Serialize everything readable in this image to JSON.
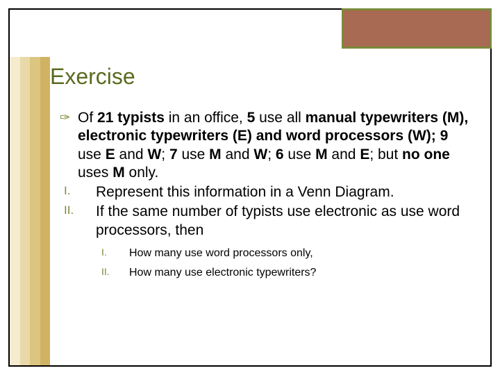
{
  "colors": {
    "frame_border": "#000000",
    "corner_fill": "#a86a52",
    "corner_border": "#7a8a3a",
    "title_color": "#5a6b1f",
    "accent": "#7a8a3a",
    "text": "#000000",
    "stripe1": "#f5ebcf",
    "stripe2": "#e9d9a9",
    "stripe3": "#dcc580",
    "stripe4": "#d0b362"
  },
  "title": "Exercise",
  "intro_html": "Of <b>21 typists</b> in an office, <b>5</b> use all <b>manual typewriters (M),  electronic typewriters (E) and word processors (W); 9</b> use <b>E</b> and <b>W</b>; <b>7</b> use <b>M</b> and <b>W</b>; <b>6</b> use <b>M</b> and <b>E</b>; but <b>no one</b> uses <b>M</b> only.",
  "items": [
    {
      "label": "I.",
      "text": "Represent this information in a Venn Diagram."
    },
    {
      "label": "II.",
      "text": "If the same number of typists use electronic as use word processors, then"
    }
  ],
  "sub_items": [
    {
      "label": "I.",
      "text": "How many use word processors only,"
    },
    {
      "label": "II.",
      "text": "How many use electronic typewriters?"
    }
  ]
}
